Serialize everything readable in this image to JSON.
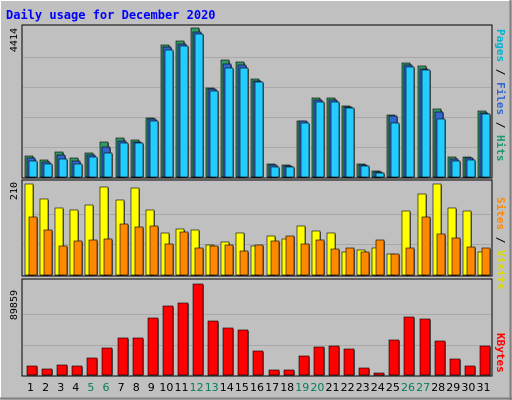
{
  "chart_data": {
    "type": "bar",
    "title": "Daily usage for December 2020",
    "categories": [
      "1",
      "2",
      "3",
      "4",
      "5",
      "6",
      "7",
      "8",
      "9",
      "10",
      "11",
      "12",
      "13",
      "14",
      "15",
      "16",
      "17",
      "18",
      "19",
      "20",
      "21",
      "22",
      "23",
      "24",
      "25",
      "26",
      "27",
      "28",
      "29",
      "30",
      "31"
    ],
    "weekend_days": [
      "5",
      "6",
      "12",
      "13",
      "19",
      "20",
      "26",
      "27"
    ],
    "top_panel": {
      "ymax_label": "4414",
      "ymax": 4414,
      "legend": [
        "Pages",
        "/",
        "Files",
        "/",
        "Hits"
      ],
      "series": [
        {
          "name": "Hits",
          "color": "#339966",
          "values": [
            620,
            510,
            730,
            560,
            710,
            1030,
            1150,
            1100,
            1760,
            3920,
            4020,
            4400,
            2640,
            3460,
            3400,
            2900,
            390,
            350,
            1670,
            2340,
            2340,
            2110,
            390,
            190,
            1850,
            3380,
            3280,
            2020,
            590,
            600,
            1960
          ]
        },
        {
          "name": "Files",
          "color": "#3366cc",
          "values": [
            560,
            440,
            640,
            470,
            650,
            900,
            1080,
            1040,
            1710,
            3840,
            3940,
            4300,
            2600,
            3340,
            3310,
            2850,
            350,
            330,
            1650,
            2290,
            2290,
            2080,
            360,
            160,
            1820,
            3310,
            3210,
            1930,
            540,
            560,
            1900
          ]
        },
        {
          "name": "Pages",
          "color": "#22ccff",
          "values": [
            470,
            380,
            540,
            380,
            590,
            720,
            1000,
            1010,
            1650,
            3770,
            3890,
            4250,
            2560,
            3230,
            3240,
            2800,
            310,
            310,
            1610,
            2230,
            2230,
            2040,
            330,
            130,
            1610,
            3250,
            3170,
            1720,
            480,
            490,
            1870
          ]
        }
      ]
    },
    "middle_panel": {
      "ymax_label": "210",
      "ymax": 210,
      "legend": [
        "Sites",
        "/",
        "Visits"
      ],
      "series": [
        {
          "name": "Visits",
          "color": "#ffff00",
          "values": [
            210,
            175,
            155,
            150,
            162,
            204,
            173,
            200,
            150,
            97,
            105,
            103,
            70,
            76,
            97,
            68,
            90,
            84,
            112,
            102,
            97,
            52,
            58,
            63,
            48,
            148,
            188,
            211,
            155,
            147,
            52
          ]
        },
        {
          "name": "Sites",
          "color": "#ff8800",
          "values": [
            133,
            104,
            68,
            79,
            80,
            84,
            117,
            110,
            112,
            72,
            99,
            63,
            68,
            70,
            56,
            70,
            79,
            91,
            72,
            80,
            60,
            63,
            53,
            80,
            48,
            62,
            134,
            95,
            85,
            65,
            63
          ]
        }
      ]
    },
    "bottom_panel": {
      "ymax_label": "89859",
      "ymax": 89859,
      "legend": [
        "KBytes"
      ],
      "series": [
        {
          "name": "KBytes",
          "color": "#ff0000",
          "values": [
            8500,
            5500,
            9800,
            8400,
            16500,
            26800,
            37000,
            36100,
            55800,
            68600,
            70800,
            89600,
            53300,
            46300,
            44200,
            23800,
            5200,
            4900,
            18900,
            27600,
            28900,
            25300,
            7100,
            2400,
            34200,
            57000,
            55000,
            34000,
            16200,
            8900,
            28600
          ]
        }
      ]
    },
    "colors": {
      "background": "#c0c0c0",
      "title_text": "#0000ff",
      "axis_text": "#000000",
      "weekend_text": "#00805c",
      "pages_text": "#00b3ce",
      "files_text": "#3366cc",
      "hits_text": "#1c9a6b",
      "sites_text": "#ff8800",
      "visits_text": "#dddd00",
      "kbytes_text": "#ff0000"
    }
  }
}
